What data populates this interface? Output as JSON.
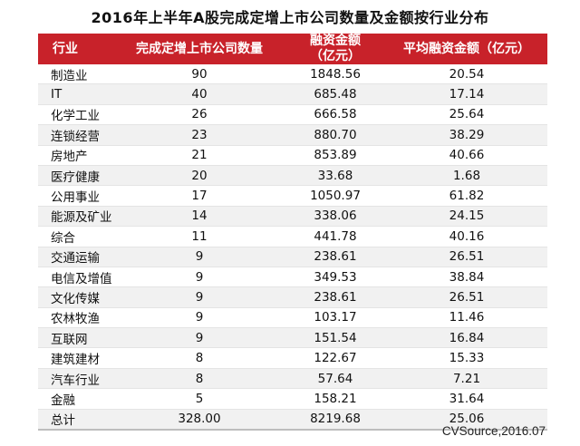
{
  "title": "2016年上半年A股完成定增上市公司数量及金额按行业分布",
  "table": {
    "headers": {
      "industry": "行业",
      "count": "完成定增上市公司数量",
      "amount_line1": "融资金额",
      "amount_line2": "（亿元）",
      "avg": "平均融资金额（亿元）"
    },
    "rows": [
      {
        "industry": "制造业",
        "count": "90",
        "amount": "1848.56",
        "avg": "20.54"
      },
      {
        "industry": "IT",
        "count": "40",
        "amount": "685.48",
        "avg": "17.14"
      },
      {
        "industry": "化学工业",
        "count": "26",
        "amount": "666.58",
        "avg": "25.64"
      },
      {
        "industry": "连锁经营",
        "count": "23",
        "amount": "880.70",
        "avg": "38.29"
      },
      {
        "industry": "房地产",
        "count": "21",
        "amount": "853.89",
        "avg": "40.66"
      },
      {
        "industry": "医疗健康",
        "count": "20",
        "amount": "33.68",
        "avg": "1.68"
      },
      {
        "industry": "公用事业",
        "count": "17",
        "amount": "1050.97",
        "avg": "61.82"
      },
      {
        "industry": "能源及矿业",
        "count": "14",
        "amount": "338.06",
        "avg": "24.15"
      },
      {
        "industry": "综合",
        "count": "11",
        "amount": "441.78",
        "avg": "40.16"
      },
      {
        "industry": "交通运输",
        "count": "9",
        "amount": "238.61",
        "avg": "26.51"
      },
      {
        "industry": "电信及增值",
        "count": "9",
        "amount": "349.53",
        "avg": "38.84"
      },
      {
        "industry": "文化传媒",
        "count": "9",
        "amount": "238.61",
        "avg": "26.51"
      },
      {
        "industry": "农林牧渔",
        "count": "9",
        "amount": "103.17",
        "avg": "11.46"
      },
      {
        "industry": "互联网",
        "count": "9",
        "amount": "151.54",
        "avg": "16.84"
      },
      {
        "industry": "建筑建材",
        "count": "8",
        "amount": "122.67",
        "avg": "15.33"
      },
      {
        "industry": "汽车行业",
        "count": "8",
        "amount": "57.64",
        "avg": "7.21"
      },
      {
        "industry": "金融",
        "count": "5",
        "amount": "158.21",
        "avg": "31.64"
      },
      {
        "industry": "总计",
        "count": "328.00",
        "amount": "8219.68",
        "avg": "25.06"
      }
    ]
  },
  "source": "CVSource,2016.07",
  "colors": {
    "header_bg": "#c8222a",
    "header_text": "#ffffff",
    "stripe": "#f1f1f1"
  }
}
